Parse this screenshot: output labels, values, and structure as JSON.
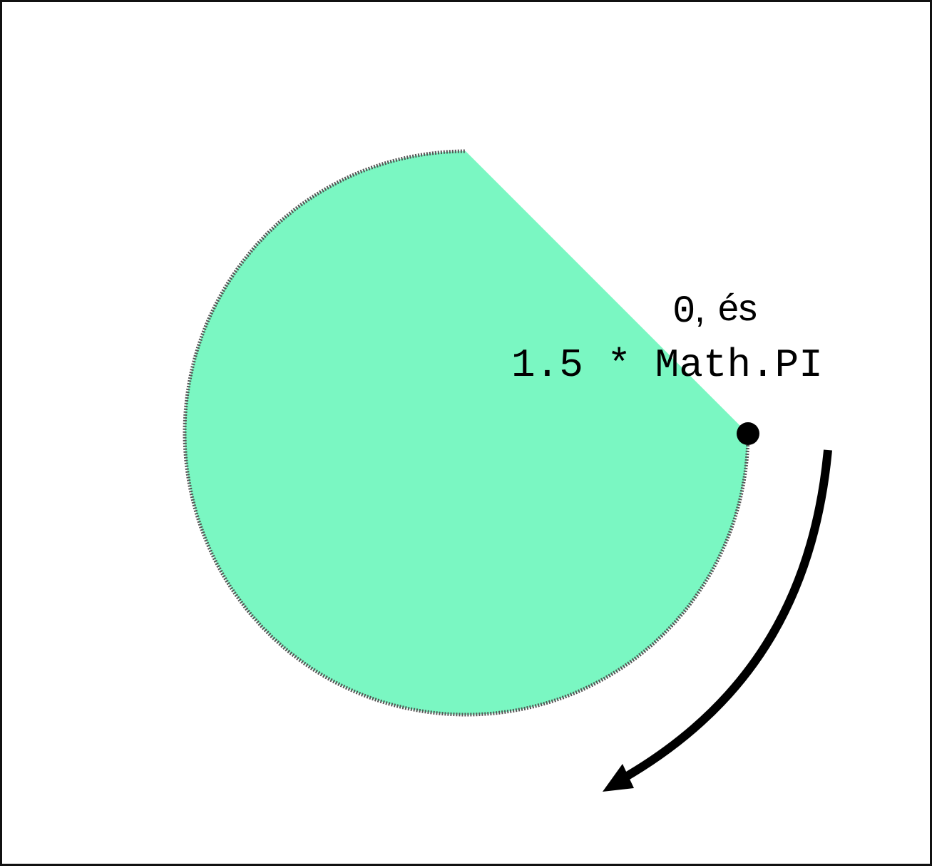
{
  "diagram": {
    "label_start_value": "0",
    "label_separator": ",",
    "label_conjunction": "és",
    "label_end_value": "1.5 * Math.PI",
    "arc_start_angle_rad": 0,
    "arc_end_angle_multiple_of_pi": 1.5,
    "direction": "clockwise",
    "colors": {
      "sector_fill": "#7af7c2",
      "sector_stroke": "#555555",
      "dot": "#000000",
      "arrow": "#000000",
      "frame": "#111111"
    }
  }
}
